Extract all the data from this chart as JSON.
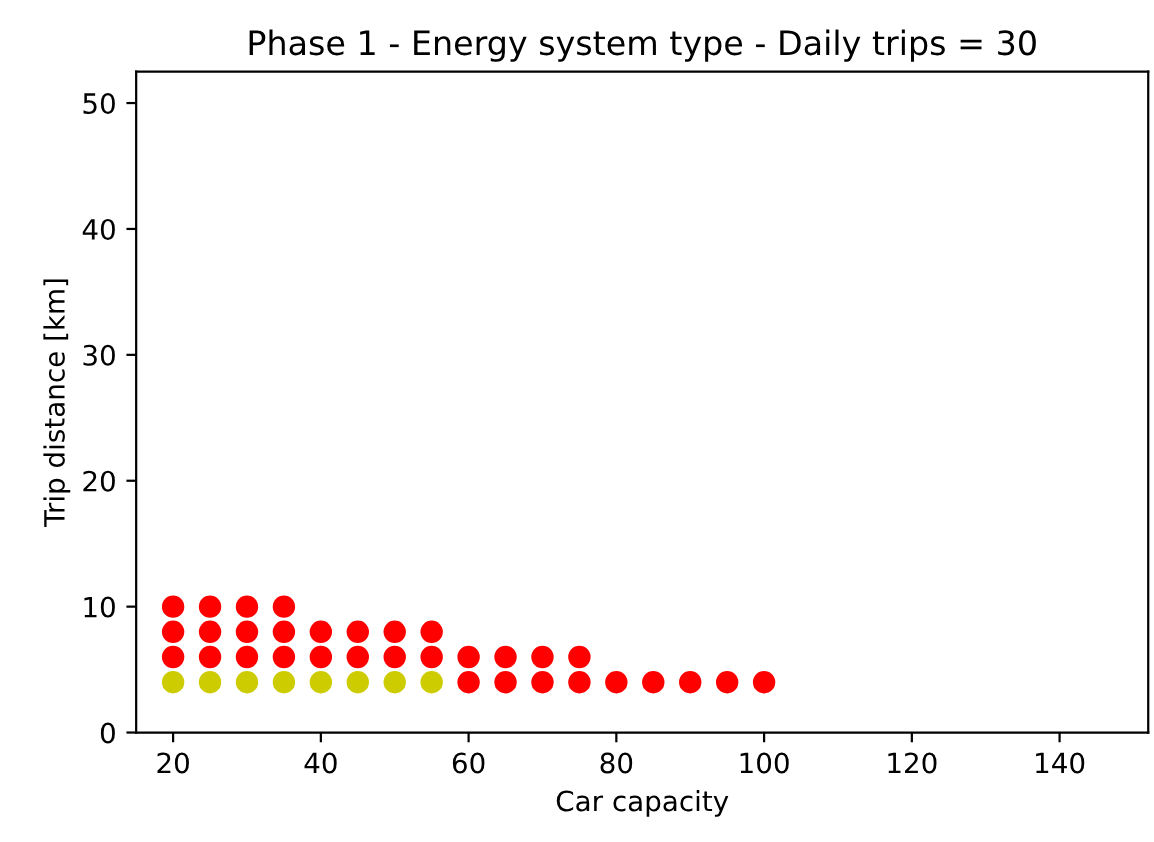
{
  "chart_data": {
    "type": "scatter",
    "title": "Phase 1 - Energy system type - Daily trips = 30",
    "xlabel": "Car capacity",
    "ylabel": "Trip distance [km]",
    "series": [
      {
        "x": [
          20,
          25,
          30,
          35,
          40,
          45,
          50,
          55,
          60,
          65,
          70,
          75,
          80,
          85,
          90,
          95,
          100,
          20,
          25,
          30,
          35,
          40,
          45,
          50,
          55,
          60,
          65,
          70,
          75,
          20,
          25,
          30,
          35,
          40,
          45,
          50,
          55,
          20,
          25,
          30,
          35
        ],
        "values": [
          4,
          4,
          4,
          4,
          4,
          4,
          4,
          4,
          4,
          4,
          4,
          4,
          4,
          4,
          4,
          4,
          4,
          6,
          6,
          6,
          6,
          6,
          6,
          6,
          6,
          6,
          6,
          6,
          6,
          8,
          8,
          8,
          8,
          8,
          8,
          8,
          8,
          10,
          10,
          10,
          10
        ],
        "colors": [
          "#cccc00",
          "#cccc00",
          "#cccc00",
          "#cccc00",
          "#cccc00",
          "#cccc00",
          "#cccc00",
          "#cccc00",
          "#ff0000",
          "#ff0000",
          "#ff0000",
          "#ff0000",
          "#ff0000",
          "#ff0000",
          "#ff0000",
          "#ff0000",
          "#ff0000",
          "#ff0000",
          "#ff0000",
          "#ff0000",
          "#ff0000",
          "#ff0000",
          "#ff0000",
          "#ff0000",
          "#ff0000",
          "#ff0000",
          "#ff0000",
          "#ff0000",
          "#ff0000",
          "#ff0000",
          "#ff0000",
          "#ff0000",
          "#ff0000",
          "#ff0000",
          "#ff0000",
          "#ff0000",
          "#ff0000",
          "#ff0000",
          "#ff0000",
          "#ff0000",
          "#ff0000"
        ]
      }
    ],
    "marker": "circle",
    "xlim": [
      15,
      152
    ],
    "xticks": [
      20,
      40,
      60,
      80,
      100,
      120,
      140
    ],
    "ylim": [
      0,
      52.5
    ],
    "yticks": [
      0,
      10,
      20,
      30,
      40,
      50
    ],
    "grid": false,
    "legend": false
  }
}
